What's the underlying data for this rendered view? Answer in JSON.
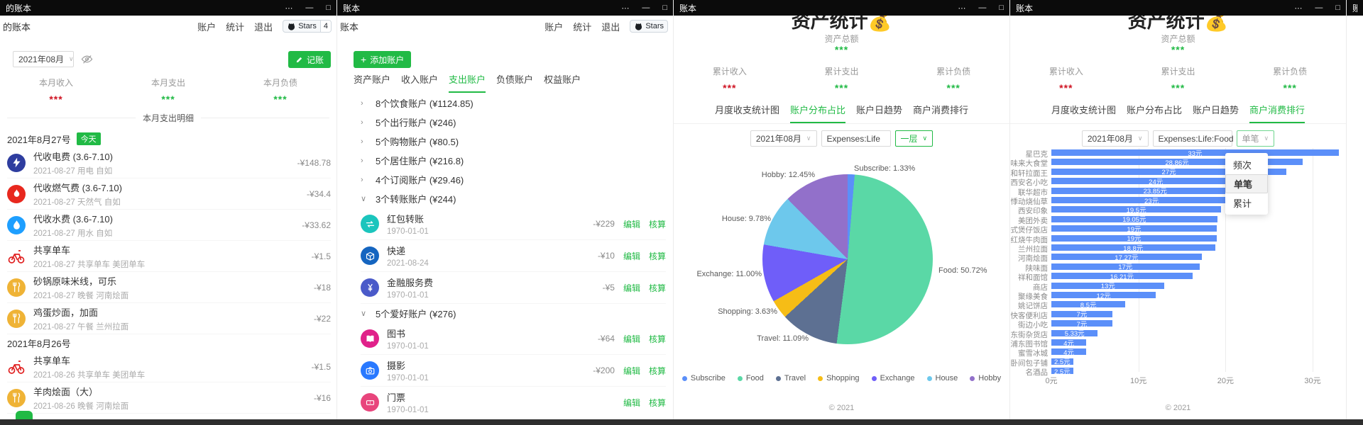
{
  "glyphs": {
    "menu": "⋯",
    "minimize": "—",
    "maximize": "□",
    "chevron_down": "∨",
    "chevron_right": "›",
    "chevron_open": "∨",
    "plus": "+"
  },
  "accent": {
    "green": "#21ba45",
    "red": "#cf1322",
    "bar_blue": "#5B8FF9"
  },
  "windows": {
    "ledger": {
      "titlebar_title": "的账本",
      "brand": "的账本",
      "nav": [
        "账户",
        "统计",
        "退出"
      ],
      "github": {
        "label": "Stars",
        "count": "4"
      },
      "month": "2021年08月",
      "record_button": "记账",
      "stats": [
        {
          "label": "本月收入",
          "value": "***",
          "color": "#cf1322"
        },
        {
          "label": "本月支出",
          "value": "***",
          "color": "#21ba45"
        },
        {
          "label": "本月负债",
          "value": "***",
          "color": "#21ba45"
        }
      ],
      "section_title": "本月支出明细",
      "day_groups": [
        {
          "date": "2021年8月27号",
          "badge": "今天",
          "items": [
            {
              "icon": "bolt-icon",
              "bg": "#2e3d9f",
              "title": "代收电费 (3.6-7.10)",
              "sub": "2021-08-27 用电 自如",
              "amount": "-¥148.78"
            },
            {
              "icon": "flame-icon",
              "bg": "#e8281e",
              "title": "代收燃气费 (3.6-7.10)",
              "sub": "2021-08-27 天然气 自如",
              "amount": "-¥34.4"
            },
            {
              "icon": "drop-icon",
              "bg": "#1e9fff",
              "title": "代收水费 (3.6-7.10)",
              "sub": "2021-08-27 用水 自如",
              "amount": "-¥33.62"
            },
            {
              "icon": "bike-icon",
              "bg": "none",
              "title": "共享单车",
              "sub": "2021-08-27 共享单车 美团单车",
              "amount": "-¥1.5"
            },
            {
              "icon": "meal-icon",
              "bg": "#efb336",
              "title": "砂锅原味米线，可乐",
              "sub": "2021-08-27 晚餐 河南烩面",
              "amount": "-¥18"
            },
            {
              "icon": "meal-icon",
              "bg": "#efb336",
              "title": "鸡蛋炒面，加面",
              "sub": "2021-08-27 午餐 兰州拉面",
              "amount": "-¥22"
            }
          ]
        },
        {
          "date": "2021年8月26号",
          "badge": "",
          "items": [
            {
              "icon": "bike-icon",
              "bg": "none",
              "title": "共享单车",
              "sub": "2021-08-26 共享单车 美团单车",
              "amount": "-¥1.5"
            },
            {
              "icon": "meal-icon",
              "bg": "#efb336",
              "title": "羊肉烩面（大）",
              "sub": "2021-08-26 晚餐 河南烩面",
              "amount": "-¥16"
            }
          ]
        }
      ]
    },
    "accounts": {
      "titlebar_title": "账本",
      "brand": "账本",
      "nav": [
        "账户",
        "统计",
        "退出"
      ],
      "github": {
        "label": "Stars",
        "count": ""
      },
      "add_button": "添加账户",
      "tabs": [
        "资产账户",
        "收入账户",
        "支出账户",
        "负债账户",
        "权益账户"
      ],
      "active_tab": 2,
      "groups": [
        {
          "expanded": false,
          "label": "8个饮食账户 (¥1124.85)",
          "items": []
        },
        {
          "expanded": false,
          "label": "5个出行账户 (¥246)",
          "items": []
        },
        {
          "expanded": false,
          "label": "5个购物账户 (¥80.5)",
          "items": []
        },
        {
          "expanded": false,
          "label": "5个居住账户 (¥216.8)",
          "items": []
        },
        {
          "expanded": false,
          "label": "4个订阅账户 (¥29.46)",
          "items": []
        },
        {
          "expanded": true,
          "label": "3个转账账户 (¥244)",
          "items": [
            {
              "icon": "transfer-icon",
              "bg": "#1bc5bd",
              "title": "红包转账",
              "date": "1970-01-01",
              "amount": "-¥229"
            },
            {
              "icon": "box-icon",
              "bg": "#1565c0",
              "title": "快递",
              "date": "2021-08-24",
              "amount": "-¥10"
            },
            {
              "icon": "yen-icon",
              "bg": "#4a5ac9",
              "title": "金融服务费",
              "date": "1970-01-01",
              "amount": "-¥5"
            }
          ]
        },
        {
          "expanded": true,
          "label": "5个爱好账户 (¥276)",
          "items": [
            {
              "icon": "book-icon",
              "bg": "#e0218a",
              "title": "图书",
              "date": "1970-01-01",
              "amount": "-¥64"
            },
            {
              "icon": "camera-icon",
              "bg": "#2979ff",
              "title": "摄影",
              "date": "1970-01-01",
              "amount": "-¥200"
            },
            {
              "icon": "ticket-icon",
              "bg": "#e8457c",
              "title": "门票",
              "date": "1970-01-01",
              "amount": ""
            }
          ]
        }
      ],
      "actions": {
        "edit": "编辑",
        "audit": "核算"
      }
    },
    "stats_pie": {
      "titlebar_title": "账本",
      "page_title": "资产统计💰",
      "total_label": "资产总额",
      "total_value": "***",
      "stats": [
        {
          "label": "累计收入",
          "value": "***",
          "color": "#cf1322"
        },
        {
          "label": "累计支出",
          "value": "***",
          "color": "#21ba45"
        },
        {
          "label": "累计负债",
          "value": "***",
          "color": "#21ba45"
        }
      ],
      "tabs": [
        "月度收支统计图",
        "账户分布占比",
        "账户日趋势",
        "商户消费排行"
      ],
      "active_tab": 1,
      "controls": {
        "month": "2021年08月",
        "filter": "Expenses:Life",
        "depth": "一层"
      },
      "footer": "© 2021"
    },
    "stats_bar": {
      "titlebar_title": "账本",
      "page_title": "资产统计💰",
      "total_label": "资产总额",
      "total_value": "***",
      "stats": [
        {
          "label": "累计收入",
          "value": "***",
          "color": "#cf1322"
        },
        {
          "label": "累计支出",
          "value": "***",
          "color": "#21ba45"
        },
        {
          "label": "累计负债",
          "value": "***",
          "color": "#21ba45"
        }
      ],
      "tabs": [
        "月度收支统计图",
        "账户分布占比",
        "账户日趋势",
        "商户消费排行"
      ],
      "active_tab": 3,
      "controls": {
        "month": "2021年08月",
        "filter": "Expenses:Life:Food",
        "mode": "单笔"
      },
      "dropdown": {
        "options": [
          "频次",
          "单笔",
          "累计"
        ],
        "selected": "单笔"
      },
      "footer": "© 2021"
    },
    "sliver": {
      "titlebar_title": "账本"
    }
  },
  "chart_data": [
    {
      "type": "pie",
      "title": "账户分布占比",
      "legend": "bottom",
      "label_format": "{name}: {pct}%",
      "series": [
        {
          "name": "Subscribe",
          "pct": 1.33,
          "color": "#5B8FF9"
        },
        {
          "name": "Food",
          "pct": 50.72,
          "color": "#5AD8A6"
        },
        {
          "name": "Travel",
          "pct": 11.09,
          "color": "#5D7092"
        },
        {
          "name": "Shopping",
          "pct": 3.63,
          "color": "#F6BD16"
        },
        {
          "name": "Exchange",
          "pct": 11.0,
          "color": "#6F5EF9"
        },
        {
          "name": "House",
          "pct": 9.78,
          "color": "#6DC8EC"
        },
        {
          "name": "Hobby",
          "pct": 12.45,
          "color": "#9270CA"
        }
      ]
    },
    {
      "type": "bar",
      "orientation": "horizontal",
      "title": "商户消费排行",
      "unit": "元",
      "xticks": [
        "0元",
        "10元",
        "20元",
        "30元"
      ],
      "xlim": [
        0,
        30
      ],
      "color": "#5B8FF9",
      "categories": [
        "星巴克",
        "好味来大食堂",
        "和轩拉面王",
        "西安名小吃",
        "联华超市",
        "悸动烧仙草",
        "西安印象",
        "美团外卖",
        "港式煲仔饭店",
        "红烧牛肉面",
        "兰州拉面",
        "河南烩面",
        "陕味面",
        "祥和面馆",
        "商店",
        "聚缘美食",
        "姚记饼店",
        "快客便利店",
        "街边小吃",
        "东街杂货店",
        "浦东图书馆",
        "蜜雪冰城",
        "卧间包子铺",
        "名酒品"
      ],
      "values": [
        33,
        28.86,
        27,
        24,
        23.85,
        23,
        19.5,
        19.05,
        19,
        19,
        18.8,
        17.27,
        17,
        16.21,
        13,
        12,
        8.5,
        7,
        7,
        5.33,
        4,
        4,
        2.5,
        2.5
      ]
    }
  ]
}
